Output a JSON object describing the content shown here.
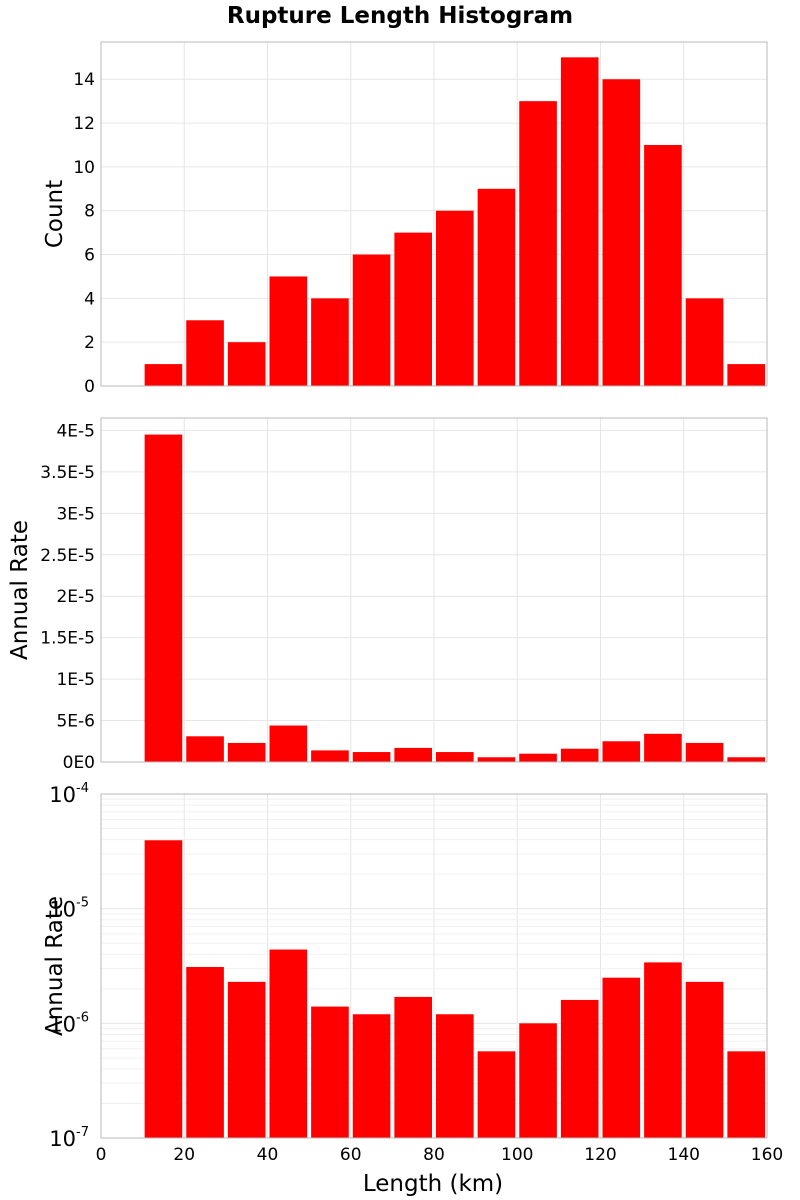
{
  "chart_data": {
    "type": "bar",
    "title": "Rupture Length Histogram",
    "xlabel": "Length (km)",
    "xlim": [
      0,
      160
    ],
    "xticks": [
      "0",
      "20",
      "40",
      "60",
      "80",
      "100",
      "120",
      "140",
      "160"
    ],
    "bin_width": 10,
    "bin_centers": [
      15,
      25,
      35,
      45,
      55,
      65,
      75,
      85,
      95,
      105,
      115,
      125,
      135,
      145,
      155
    ],
    "bar_color": "#ff0000",
    "grid": true,
    "panels": [
      {
        "ylabel": "Count",
        "scale": "linear",
        "ylim": [
          0,
          15.7
        ],
        "yticks": [
          {
            "value": 0,
            "label": "0"
          },
          {
            "value": 2,
            "label": "2"
          },
          {
            "value": 4,
            "label": "4"
          },
          {
            "value": 6,
            "label": "6"
          },
          {
            "value": 8,
            "label": "8"
          },
          {
            "value": 10,
            "label": "10"
          },
          {
            "value": 12,
            "label": "12"
          },
          {
            "value": 14,
            "label": "14"
          }
        ],
        "values": [
          1,
          3,
          2,
          5,
          4,
          6,
          7,
          8,
          9,
          13,
          15,
          14,
          11,
          4,
          1
        ]
      },
      {
        "ylabel": "Annual Rate",
        "scale": "linear",
        "ylim": [
          0,
          4.15e-05
        ],
        "yticks": [
          {
            "value": 0,
            "label": "0E0"
          },
          {
            "value": 5e-06,
            "label": "5E-6"
          },
          {
            "value": 1e-05,
            "label": "1E-5"
          },
          {
            "value": 1.5e-05,
            "label": "1.5E-5"
          },
          {
            "value": 2e-05,
            "label": "2E-5"
          },
          {
            "value": 2.5e-05,
            "label": "2.5E-5"
          },
          {
            "value": 3e-05,
            "label": "3E-5"
          },
          {
            "value": 3.5e-05,
            "label": "3.5E-5"
          },
          {
            "value": 4e-05,
            "label": "4E-5"
          }
        ],
        "values": [
          3.95e-05,
          3.1e-06,
          2.3e-06,
          4.4e-06,
          1.4e-06,
          1.2e-06,
          1.7e-06,
          1.2e-06,
          5.7e-07,
          1e-06,
          1.6e-06,
          2.5e-06,
          3.4e-06,
          2.3e-06,
          5.7e-07
        ]
      },
      {
        "ylabel": "Annual Rate",
        "scale": "log",
        "ylim": [
          1e-07,
          0.0001
        ],
        "yticks": [
          {
            "value": 1e-07,
            "base": "10",
            "exp": "-7"
          },
          {
            "value": 1e-06,
            "base": "10",
            "exp": "-6"
          },
          {
            "value": 1e-05,
            "base": "10",
            "exp": "-5"
          },
          {
            "value": 0.0001,
            "base": "10",
            "exp": "-4"
          }
        ],
        "values": [
          3.95e-05,
          3.1e-06,
          2.3e-06,
          4.4e-06,
          1.4e-06,
          1.2e-06,
          1.7e-06,
          1.2e-06,
          5.7e-07,
          1e-06,
          1.6e-06,
          2.5e-06,
          3.4e-06,
          2.3e-06,
          5.7e-07
        ]
      }
    ]
  }
}
